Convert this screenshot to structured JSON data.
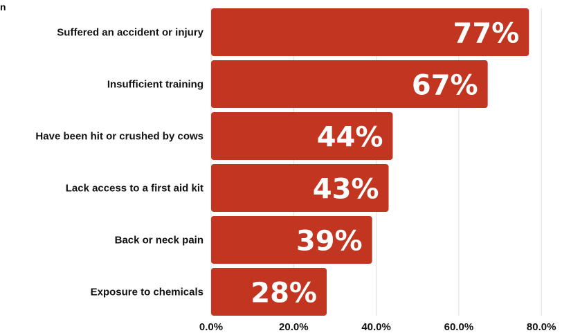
{
  "page": {
    "stub_text": "n"
  },
  "chart_data": {
    "type": "bar",
    "orientation": "horizontal",
    "categories": [
      "Suffered an accident or injury",
      "Insufficient training",
      "Have been hit or crushed by cows",
      "Lack access to a first aid kit",
      "Back or neck pain",
      "Exposure to chemicals"
    ],
    "values": [
      77,
      67,
      44,
      43,
      39,
      28
    ],
    "data_labels": [
      "77%",
      "67%",
      "44%",
      "43%",
      "39%",
      "28%"
    ],
    "xlim": [
      0,
      80
    ],
    "ticks": [
      0,
      20,
      40,
      60,
      80
    ],
    "tick_labels": [
      "0.0%",
      "20.0%",
      "40.0%",
      "60.0%",
      "80.0%"
    ],
    "grid": "vertical",
    "colors": {
      "bar": "#C23520",
      "grid": "#DDDDDD",
      "text": "#111111",
      "bar_label": "#FFFFFF"
    }
  }
}
